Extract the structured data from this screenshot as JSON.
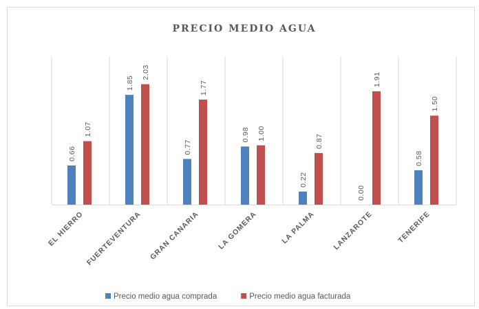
{
  "chart_data": {
    "type": "bar",
    "title": "PRECIO MEDIO AGUA",
    "categories": [
      "EL HIERRO",
      "FUERTEVENTURA",
      "GRAN CANARIA",
      "LA GOMERA",
      "LA PALMA",
      "LANZAROTE",
      "TENERIFE"
    ],
    "series": [
      {
        "name": "Precio medio agua comprada",
        "color": "#4f81bd",
        "values": [
          0.66,
          1.85,
          0.77,
          0.98,
          0.22,
          0,
          0.58
        ],
        "value_labels": [
          "0.66",
          "1.85",
          "0.77",
          "0.98",
          "0.22",
          "0.00",
          "0.58"
        ]
      },
      {
        "name": "Precio medio agua facturada",
        "color": "#c0504d",
        "values": [
          1.07,
          2.03,
          1.77,
          1,
          0.87,
          1.91,
          1.5
        ],
        "value_labels": [
          "1.07",
          "2.03",
          "1.77",
          "1.00",
          "0.87",
          "1.91",
          "1.50"
        ]
      }
    ],
    "ylim": [
      0,
      2.5
    ],
    "legend": "bottom"
  }
}
